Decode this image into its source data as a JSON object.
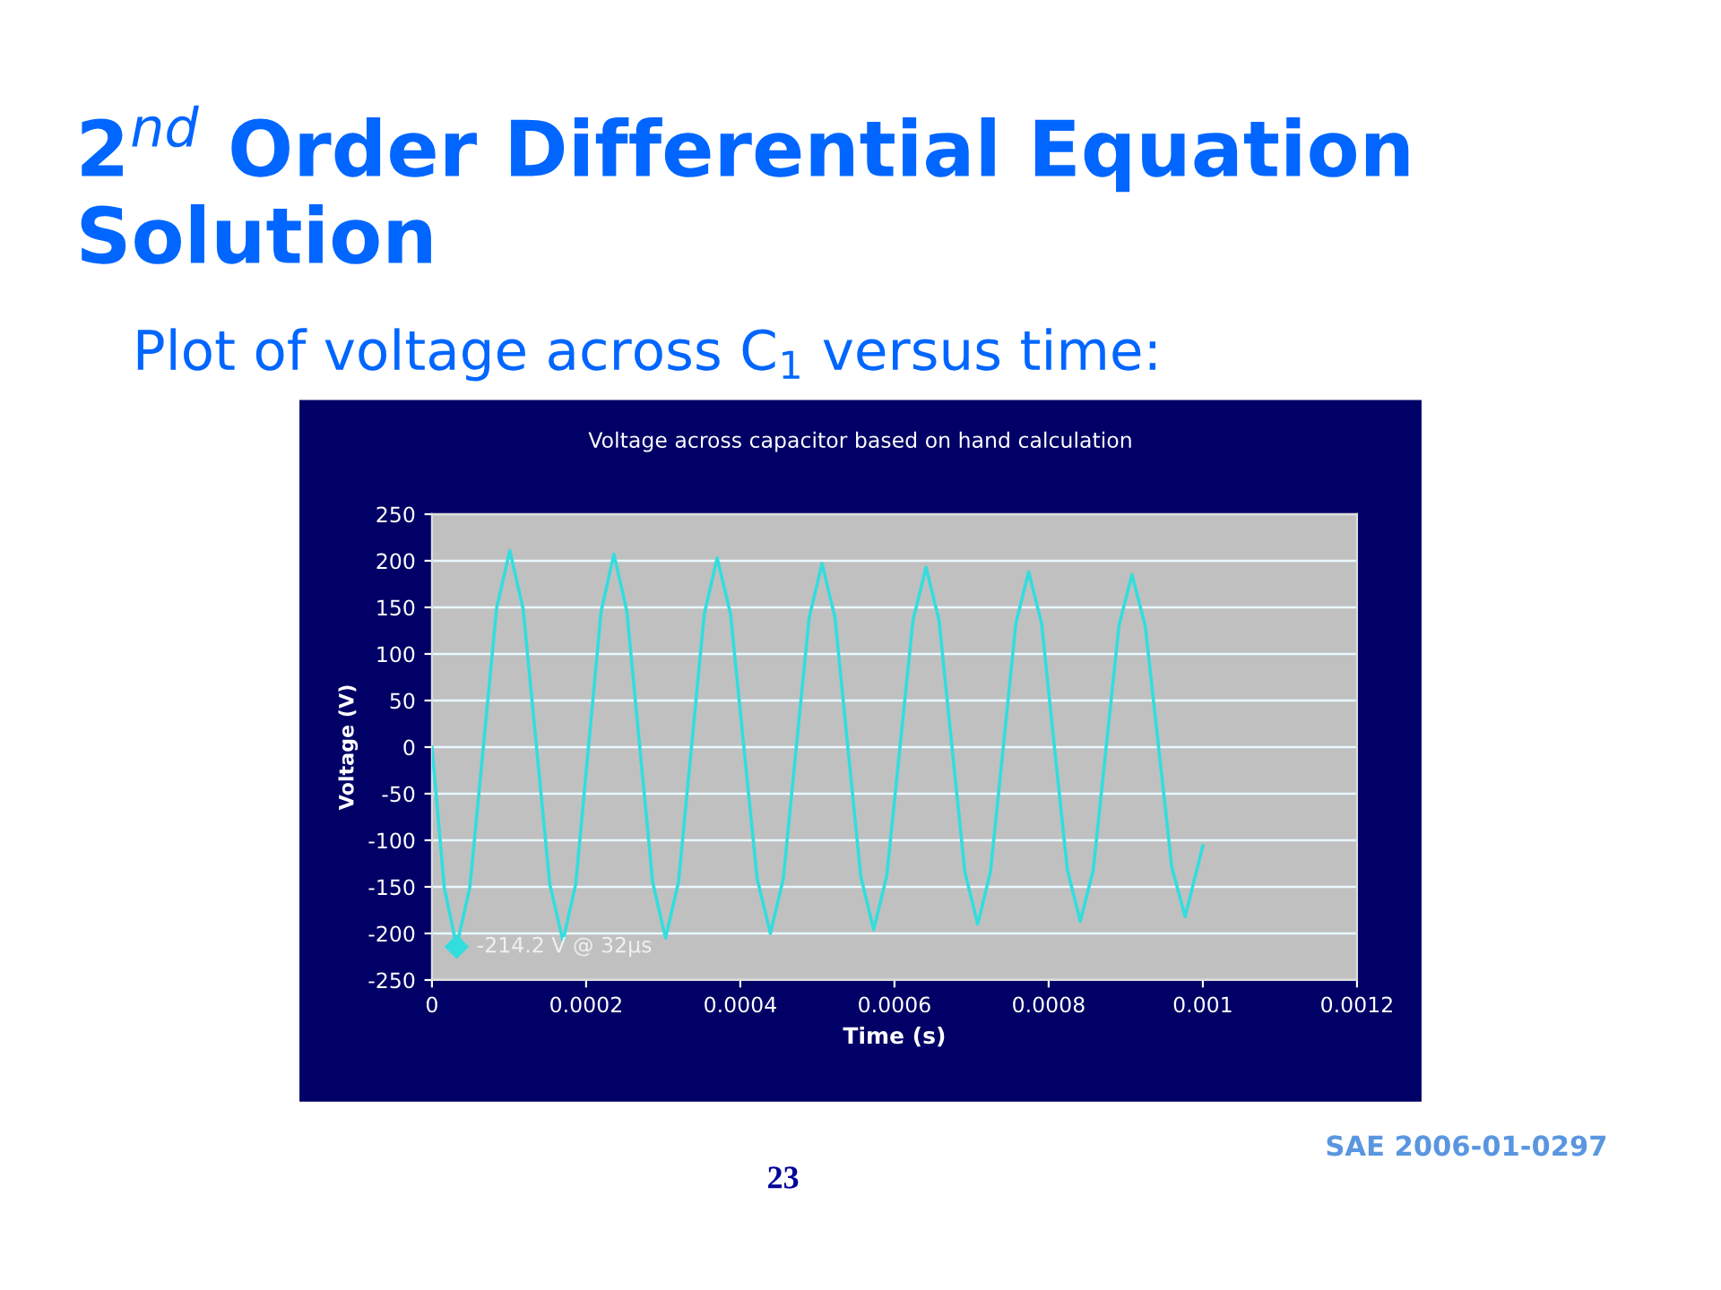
{
  "chart_data": {
    "type": "line",
    "title": "Voltage across capacitor based on hand calculation",
    "xlabel": "Time (s)",
    "ylabel": "Voltage (V)",
    "annotations": [
      "2$^{nd}$ Order Differential Equation Solution",
      "Plot of voltage across C$_{1}$ versus time:",
      "23",
      "SAE 2006-01-0297",
      {
        "text": "-214.2 V @ 32µs",
        "x": 3.2e-05,
        "y": -214.2
      }
    ],
    "series": [
      {
        "color": "#33dddd",
        "x": [
          0,
          1.6e-05,
          3.2e-05,
          4.92e-05,
          6.65e-05,
          8.38e-05,
          0.000101,
          0.0001183,
          0.0001355,
          0.0001528,
          0.00017,
          0.0001865,
          0.000203,
          0.0002195,
          0.000236,
          0.0002528,
          0.0002695,
          0.0002863,
          0.000303,
          0.0003198,
          0.0003365,
          0.0003533,
          0.00037,
          0.0003873,
          0.0004045,
          0.0004218,
          0.000439,
          0.0004558,
          0.0004725,
          0.0004893,
          0.000506,
          0.0005228,
          0.0005395,
          0.0005563,
          0.000573,
          0.00059,
          0.000607,
          0.000624,
          0.000641,
          0.0006578,
          0.0006745,
          0.0006913,
          0.000708,
          0.0007245,
          0.000741,
          0.0007575,
          0.000774,
          0.0007908,
          0.0008075,
          0.0008243,
          0.000841,
          0.0008578,
          0.0008745,
          0.0008913,
          0.000908,
          0.0009253,
          0.0009425,
          0.0009598,
          0.000977,
          0.001
        ],
        "values": [
          0,
          -151,
          -214,
          -150,
          -1,
          149,
          211,
          148,
          1,
          -147,
          -208,
          -147,
          0,
          146,
          207,
          146,
          1,
          -145,
          -205,
          -145,
          -1,
          143,
          203,
          143,
          1,
          -141,
          -200,
          -141,
          -1,
          139,
          197,
          139,
          0,
          -139,
          -196,
          -138,
          -1,
          136,
          193,
          136,
          1,
          -134,
          -190,
          -134,
          -1,
          133,
          188,
          133,
          0,
          -132,
          -187,
          -132,
          -1,
          131,
          185,
          130,
          1,
          -129,
          -182,
          -106
        ]
      }
    ],
    "xlim": [
      0,
      0.0012
    ],
    "xticks": [
      0,
      0.0002,
      0.0004,
      0.0006,
      0.0008,
      0.001,
      0.0012
    ],
    "ylim": [
      -250,
      250
    ],
    "yticks": [
      -250,
      -200,
      -150,
      -100,
      -50,
      0,
      50,
      100,
      150,
      200,
      250
    ],
    "grid": "y",
    "marker": "none",
    "line_style": "solid"
  }
}
